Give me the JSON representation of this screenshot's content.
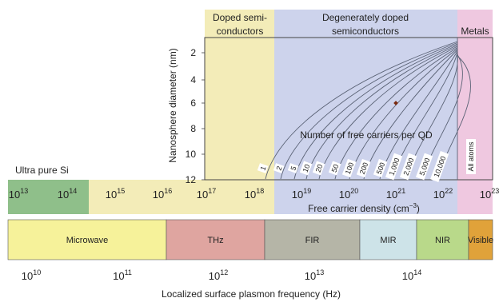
{
  "regions": {
    "doped": {
      "label_line1": "Doped semi-",
      "label_line2": "conductors",
      "color": "#f3ecb8"
    },
    "degenerate": {
      "label_line1": "Degenerately doped",
      "label_line2": "semiconductors",
      "color": "#cdd3ec"
    },
    "metals": {
      "label": "Metals",
      "color": "#efc8e0"
    }
  },
  "ultra_pure_label": "Ultra pure Si",
  "axes": {
    "y_label": "Nanosphere diameter (nm)",
    "y_ticks": [
      "2",
      "4",
      "6",
      "8",
      "10",
      "12"
    ],
    "density_label": "Free carrier density (cm",
    "density_label_sup": "−3",
    "density_label_end": ")",
    "density_ticks": [
      {
        "base": "10",
        "exp": "13"
      },
      {
        "base": "10",
        "exp": "14"
      },
      {
        "base": "10",
        "exp": "15"
      },
      {
        "base": "10",
        "exp": "16"
      },
      {
        "base": "10",
        "exp": "17"
      },
      {
        "base": "10",
        "exp": "18"
      },
      {
        "base": "10",
        "exp": "19"
      },
      {
        "base": "10",
        "exp": "20"
      },
      {
        "base": "10",
        "exp": "21"
      },
      {
        "base": "10",
        "exp": "22"
      },
      {
        "base": "10",
        "exp": "23"
      }
    ],
    "freq_label": "Localized surface plasmon frequency (Hz)",
    "freq_ticks": [
      {
        "base": "10",
        "exp": "10"
      },
      {
        "base": "10",
        "exp": "11"
      },
      {
        "base": "10",
        "exp": "12"
      },
      {
        "base": "10",
        "exp": "13"
      },
      {
        "base": "10",
        "exp": "14"
      }
    ]
  },
  "carrier_title": "Number of free carriers per QD",
  "carrier_labels": [
    "1",
    "2",
    "5",
    "10",
    "20",
    "50",
    "100",
    "200",
    "500",
    "1,000",
    "2,000",
    "5,000",
    "10,000",
    "All atoms"
  ],
  "spectrum": [
    {
      "label": "Microwave",
      "color": "#f6f29a"
    },
    {
      "label": "THz",
      "color": "#dfa5a0"
    },
    {
      "label": "FIR",
      "color": "#b5b5a7"
    },
    {
      "label": "MIR",
      "color": "#cde3e8"
    },
    {
      "label": "NIR",
      "color": "#b9d98a"
    },
    {
      "label": "Visible",
      "color": "#e0a23a"
    }
  ],
  "density_bar_colors": {
    "green": "#8fbf8a",
    "yellow": "#f3ecb8",
    "blue": "#cdd3ec",
    "pink": "#efc8e0"
  }
}
